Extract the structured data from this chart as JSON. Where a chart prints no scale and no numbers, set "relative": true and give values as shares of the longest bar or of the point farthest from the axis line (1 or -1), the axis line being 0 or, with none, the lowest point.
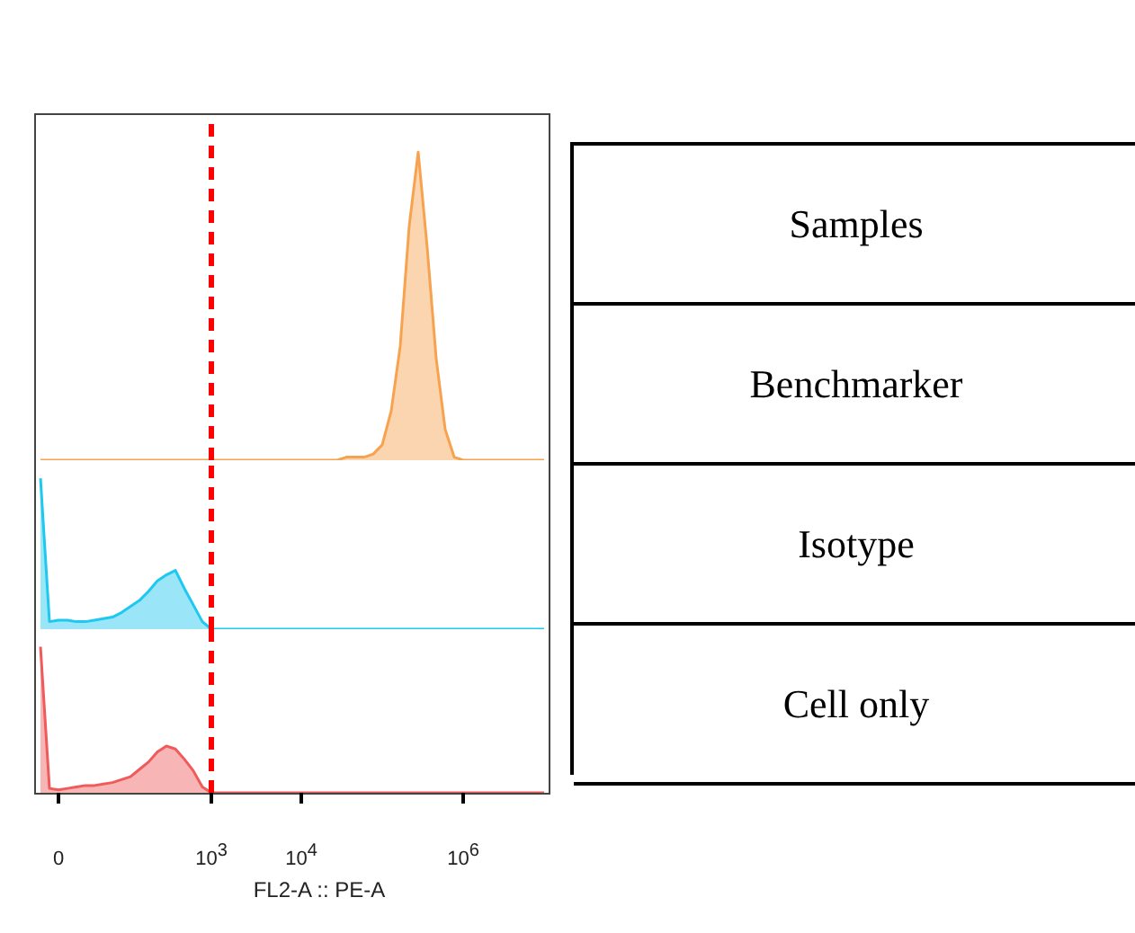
{
  "chart_data": [
    {
      "type": "area",
      "relative": true,
      "tick_labels": false,
      "categories": [
        null,
        null,
        "0",
        null,
        null,
        null,
        null,
        null,
        null,
        null,
        null,
        null,
        null,
        null,
        null,
        null,
        null,
        null,
        null,
        "10$^{3}$",
        null,
        null,
        null,
        null,
        null,
        null,
        null,
        null,
        null,
        "10$^{4}$",
        null,
        null,
        null,
        null,
        null,
        null,
        null,
        null,
        null,
        null,
        null,
        null,
        null,
        null,
        null,
        null,
        null,
        "10$^{6}$",
        null,
        null,
        null,
        null,
        null,
        null,
        null,
        null,
        null
      ],
      "ref_lines": [
        {
          "axis": "x",
          "value": "10$^{3}$",
          "color": "#ff0000",
          "line_style": "dashed"
        }
      ],
      "series": [
        {
          "color": "#f7a24f",
          "values": [
            0,
            0,
            0,
            0,
            0,
            0,
            0,
            0,
            0,
            0,
            0,
            0,
            0,
            0,
            0,
            0,
            0,
            0,
            0,
            0,
            0,
            0,
            0,
            0,
            0,
            0,
            0,
            0,
            0,
            0,
            0,
            0,
            0,
            0,
            0.01,
            0.01,
            0.01,
            0.02,
            0.05,
            0.16,
            0.37,
            0.76,
            1,
            0.69,
            0.33,
            0.1,
            0.01,
            0,
            0,
            0,
            0,
            0,
            0,
            0,
            0,
            0,
            0
          ]
        }
      ]
    },
    {
      "type": "area",
      "relative": true,
      "tick_labels": false,
      "categories": [
        null,
        null,
        "0",
        null,
        null,
        null,
        null,
        null,
        null,
        null,
        null,
        null,
        null,
        null,
        null,
        null,
        null,
        null,
        null,
        "10$^{3}$",
        null,
        null,
        null,
        null,
        null,
        null,
        null,
        null,
        null,
        "10$^{4}$",
        null,
        null,
        null,
        null,
        null,
        null,
        null,
        null,
        null,
        null,
        null,
        null,
        null,
        null,
        null,
        null,
        null,
        "10$^{6}$",
        null,
        null,
        null,
        null,
        null,
        null,
        null,
        null,
        null
      ],
      "ref_lines": [
        {
          "axis": "x",
          "value": "10$^{3}$",
          "color": "#ff0000",
          "line_style": "dashed"
        }
      ],
      "series": [
        {
          "color": "#1ec8f0",
          "values": [
            1,
            0.05,
            0.06,
            0.06,
            0.05,
            0.05,
            0.06,
            0.07,
            0.08,
            0.11,
            0.15,
            0.19,
            0.25,
            0.32,
            0.36,
            0.39,
            0.27,
            0.16,
            0.05,
            0,
            0,
            0,
            0,
            0,
            0,
            0,
            0,
            0,
            0,
            0,
            0,
            0,
            0,
            0,
            0,
            0,
            0,
            0,
            0,
            0,
            0,
            0,
            0,
            0,
            0,
            0,
            0,
            0,
            0,
            0,
            0,
            0,
            0,
            0,
            0,
            0,
            0
          ]
        }
      ]
    },
    {
      "type": "area",
      "relative": true,
      "tick_labels": "x",
      "xlabel": "FL2-A :: PE-A",
      "categories": [
        null,
        null,
        "0",
        null,
        null,
        null,
        null,
        null,
        null,
        null,
        null,
        null,
        null,
        null,
        null,
        null,
        null,
        null,
        null,
        "10$^{3}$",
        null,
        null,
        null,
        null,
        null,
        null,
        null,
        null,
        null,
        "10$^{4}$",
        null,
        null,
        null,
        null,
        null,
        null,
        null,
        null,
        null,
        null,
        null,
        null,
        null,
        null,
        null,
        null,
        null,
        "10$^{6}$",
        null,
        null,
        null,
        null,
        null,
        null,
        null,
        null,
        null
      ],
      "ref_lines": [
        {
          "axis": "x",
          "value": "10$^{3}$",
          "color": "#ff0000",
          "line_style": "dashed"
        }
      ],
      "series": [
        {
          "color": "#f05a5a",
          "values": [
            1,
            0.03,
            0.02,
            0.03,
            0.04,
            0.05,
            0.05,
            0.06,
            0.07,
            0.09,
            0.11,
            0.16,
            0.21,
            0.28,
            0.32,
            0.3,
            0.23,
            0.15,
            0.04,
            0,
            0,
            0,
            0,
            0,
            0,
            0,
            0,
            0,
            0,
            0,
            0,
            0,
            0,
            0,
            0,
            0,
            0,
            0,
            0,
            0,
            0,
            0,
            0,
            0,
            0,
            0,
            0,
            0,
            0,
            0,
            0,
            0,
            0,
            0,
            0,
            0,
            0
          ]
        }
      ]
    },
    {
      "type": "other",
      "annotations": [
        "Samples",
        "Benchmarker",
        "Isotype",
        "Cell only"
      ]
    }
  ]
}
